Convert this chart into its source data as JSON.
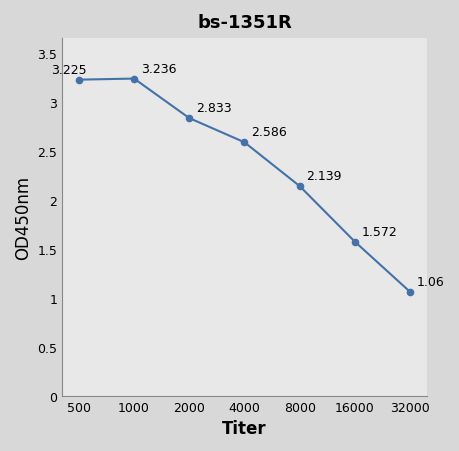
{
  "title": "bs-1351R",
  "xlabel": "Titer",
  "ylabel": "OD450nm",
  "x_positions": [
    0,
    1,
    2,
    3,
    4,
    5,
    6
  ],
  "y_values": [
    3.225,
    3.236,
    2.833,
    2.586,
    2.139,
    1.572,
    1.06
  ],
  "labels": [
    "3.225",
    "3.236",
    "2.833",
    "2.586",
    "2.139",
    "1.572",
    "1.06"
  ],
  "xtick_labels": [
    "500",
    "1000",
    "2000",
    "4000",
    "8000",
    "16000",
    "32000"
  ],
  "line_color": "#4472a8",
  "marker_color": "#4472a8",
  "ylim": [
    0,
    3.65
  ],
  "yticks": [
    0,
    0.5,
    1.0,
    1.5,
    2.0,
    2.5,
    3.0,
    3.5
  ],
  "ytick_labels": [
    "0",
    "0.5",
    "1",
    "1.5",
    "2",
    "2.5",
    "3",
    "3.5"
  ],
  "title_fontsize": 13,
  "axis_label_fontsize": 12,
  "tick_fontsize": 9,
  "annotation_fontsize": 9,
  "background_color": "#f0f0f0"
}
